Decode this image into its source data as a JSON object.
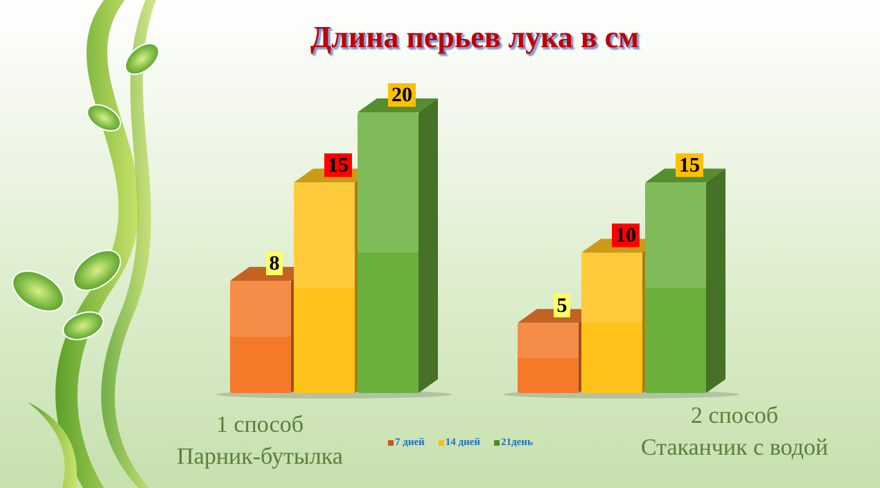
{
  "chart_data": {
    "type": "bar",
    "title": "Длина перьев лука в см",
    "categories": [
      "1 способ Парник-бутылка",
      "2 способ Стаканчик с водой"
    ],
    "category_lines": [
      [
        "1 способ",
        "Парник-бутылка"
      ],
      [
        "2 способ",
        "Стаканчик с водой"
      ]
    ],
    "series": [
      {
        "name": "7 дней",
        "values": [
          8,
          5
        ],
        "color": "#f47a2a",
        "label_bg": "#ffff66"
      },
      {
        "name": "14 дней",
        "values": [
          15,
          10
        ],
        "color": "#ffc21a",
        "label_bg": "#ff0000"
      },
      {
        "name": "21день",
        "values": [
          20,
          15
        ],
        "color": "#6ab03c",
        "label_bg": "#ffc000"
      }
    ],
    "ylim": [
      0,
      20
    ],
    "grid": false,
    "legend_position": "bottom",
    "style": "3d-column"
  }
}
